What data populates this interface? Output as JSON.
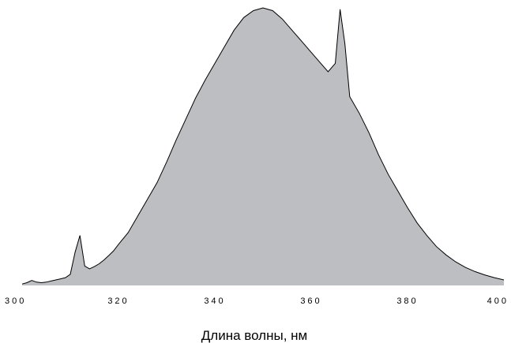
{
  "chart_data": {
    "type": "area",
    "title": "",
    "xlabel": "Длина волны, нм",
    "ylabel": "",
    "xlim": [
      300,
      400
    ],
    "ylim": [
      0,
      1
    ],
    "x_ticks": [
      "300",
      "320",
      "340",
      "360",
      "380",
      "400"
    ],
    "grid": false,
    "fill_color": "#bdbec1",
    "line_color": "#000000",
    "series": [
      {
        "x": [
          300,
          301,
          302,
          303,
          304,
          305,
          306,
          307,
          308,
          309,
          310,
          311,
          312,
          313,
          314,
          315,
          316,
          317,
          318,
          319,
          320,
          322,
          324,
          326,
          328,
          330,
          332,
          334,
          336,
          338,
          340,
          342,
          344,
          346,
          348,
          350,
          352,
          354,
          356,
          358,
          360,
          362,
          363.5,
          365,
          366,
          367,
          368,
          370,
          372,
          374,
          376,
          378,
          380,
          382,
          384,
          386,
          388,
          390,
          392,
          394,
          396,
          398,
          400
        ],
        "y": [
          0.005,
          0.01,
          0.018,
          0.012,
          0.01,
          0.012,
          0.016,
          0.02,
          0.024,
          0.028,
          0.04,
          0.12,
          0.18,
          0.07,
          0.06,
          0.068,
          0.078,
          0.092,
          0.108,
          0.125,
          0.148,
          0.19,
          0.25,
          0.31,
          0.37,
          0.445,
          0.525,
          0.6,
          0.675,
          0.74,
          0.8,
          0.86,
          0.92,
          0.965,
          0.99,
          1.0,
          0.99,
          0.96,
          0.92,
          0.88,
          0.84,
          0.8,
          0.77,
          0.8,
          0.995,
          0.87,
          0.68,
          0.62,
          0.55,
          0.47,
          0.4,
          0.34,
          0.28,
          0.225,
          0.18,
          0.14,
          0.11,
          0.085,
          0.065,
          0.05,
          0.038,
          0.028,
          0.02
        ]
      }
    ]
  }
}
